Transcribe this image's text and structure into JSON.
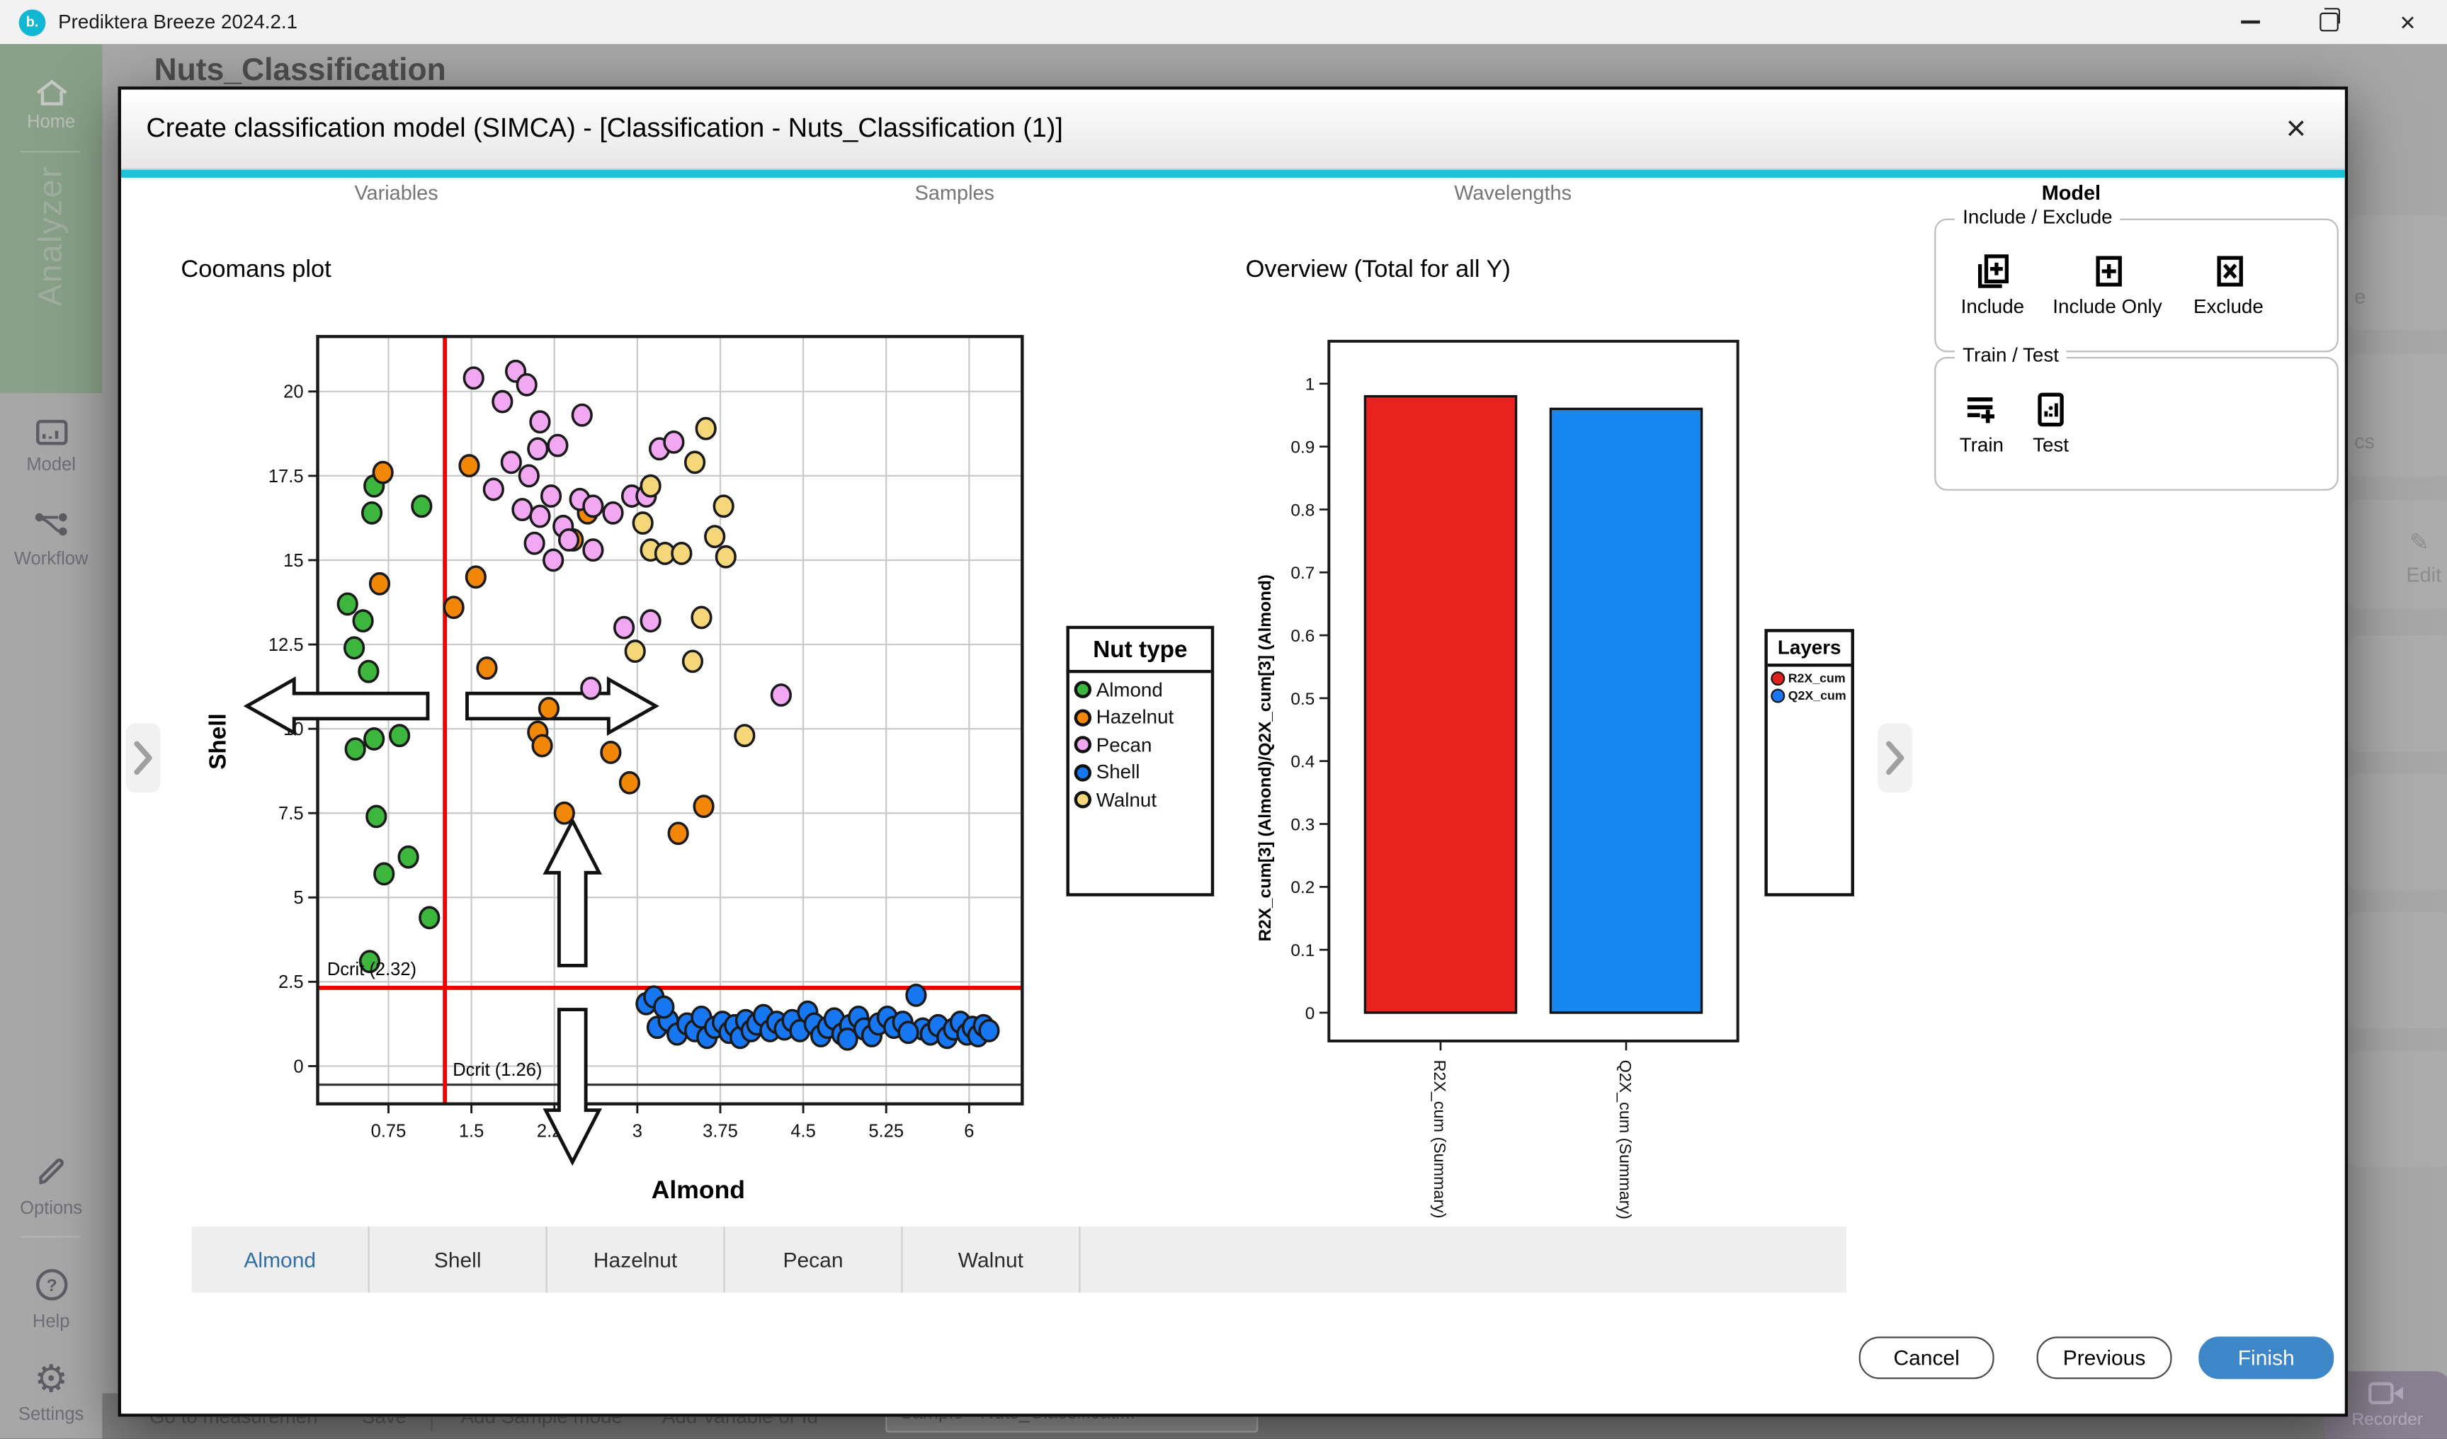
{
  "window": {
    "title": "Prediktera Breeze 2024.2.1",
    "logo_text": "b."
  },
  "sidebar": {
    "home": "Home",
    "analyzer": "Analyzer",
    "model": "Model",
    "workflow": "Workflow",
    "options": "Options",
    "help": "Help",
    "settings": "Settings"
  },
  "background": {
    "heading": "Nuts_Classification",
    "bottom_bar": {
      "go_to": "Go to measuremen",
      "save": "Save",
      "add_sample": "Add Sample mode",
      "add_variable": "Add Variable or Id",
      "dropdown": "Sample - Nuts_Classificati...",
      "caret": "▼"
    },
    "right_cards": {
      "card1": "e",
      "card2": "cs",
      "edit": "Edit"
    },
    "recorder": "Recorder"
  },
  "dialog": {
    "title": "Create classification model (SIMCA) - [Classification - Nuts_Classification (1)]",
    "close": "×",
    "steps": {
      "variables": "Variables",
      "samples": "Samples",
      "wavelengths": "Wavelengths",
      "model": "Model"
    },
    "panel": {
      "include_exclude": {
        "label": "Include / Exclude",
        "include": "Include",
        "include_only": "Include Only",
        "exclude": "Exclude"
      },
      "train_test": {
        "label": "Train / Test",
        "train": "Train",
        "test": "Test"
      }
    },
    "class_tabs": [
      "Almond",
      "Shell",
      "Hazelnut",
      "Pecan",
      "Walnut"
    ],
    "buttons": {
      "cancel": "Cancel",
      "previous": "Previous",
      "finish": "Finish"
    }
  },
  "colors": {
    "accent_teal": "#1ec2d6",
    "finish_blue": "#3d87c9",
    "dcrit_red": "#f20000"
  },
  "chart_data": [
    {
      "type": "scatter",
      "title": "Coomans plot",
      "xlabel": "Almond",
      "ylabel": "Shell",
      "xlim": [
        0.11,
        6.48
      ],
      "ylim": [
        -1.12,
        21.63
      ],
      "xticks": [
        0.75,
        1.5,
        2.25,
        3,
        3.75,
        4.5,
        5.25,
        6
      ],
      "yticks": [
        0,
        2.5,
        5,
        7.5,
        10,
        12.5,
        15,
        17.5,
        20
      ],
      "grid": true,
      "dcrit_x": {
        "value": 1.26,
        "label": "Dcrit (1.26)"
      },
      "dcrit_y": {
        "value": 2.32,
        "label": "Dcrit (2.32)"
      },
      "zero_line_y": -0.55,
      "legend": {
        "title": "Nut type",
        "position": "right"
      },
      "series": [
        {
          "name": "Almond",
          "color": "#3cb63c",
          "points": [
            [
              0.62,
              17.2
            ],
            [
              0.6,
              16.4
            ],
            [
              1.05,
              16.6
            ],
            [
              0.38,
              13.7
            ],
            [
              0.52,
              13.2
            ],
            [
              0.44,
              12.4
            ],
            [
              0.57,
              11.7
            ],
            [
              0.85,
              9.8
            ],
            [
              0.62,
              9.7
            ],
            [
              0.45,
              9.4
            ],
            [
              0.64,
              7.4
            ],
            [
              0.71,
              5.7
            ],
            [
              0.58,
              3.1
            ],
            [
              1.12,
              4.4
            ],
            [
              0.93,
              6.2
            ]
          ]
        },
        {
          "name": "Hazelnut",
          "color": "#f28705",
          "points": [
            [
              0.7,
              17.6
            ],
            [
              1.48,
              17.8
            ],
            [
              0.67,
              14.3
            ],
            [
              1.54,
              14.5
            ],
            [
              1.34,
              13.6
            ],
            [
              2.42,
              15.6
            ],
            [
              2.55,
              16.4
            ],
            [
              1.64,
              11.8
            ],
            [
              2.1,
              9.9
            ],
            [
              2.14,
              9.5
            ],
            [
              2.2,
              10.6
            ],
            [
              2.76,
              9.3
            ],
            [
              2.93,
              8.4
            ],
            [
              2.34,
              7.5
            ],
            [
              3.37,
              6.9
            ],
            [
              3.6,
              7.7
            ]
          ]
        },
        {
          "name": "Pecan",
          "color": "#f2a7f2",
          "points": [
            [
              1.52,
              20.4
            ],
            [
              1.9,
              20.6
            ],
            [
              2.0,
              20.2
            ],
            [
              1.78,
              19.7
            ],
            [
              2.12,
              19.1
            ],
            [
              2.5,
              19.3
            ],
            [
              2.1,
              18.3
            ],
            [
              2.28,
              18.4
            ],
            [
              1.86,
              17.9
            ],
            [
              2.02,
              17.5
            ],
            [
              1.7,
              17.1
            ],
            [
              2.22,
              16.9
            ],
            [
              2.48,
              16.8
            ],
            [
              1.96,
              16.5
            ],
            [
              2.12,
              16.3
            ],
            [
              2.33,
              16.0
            ],
            [
              2.6,
              16.6
            ],
            [
              2.78,
              16.4
            ],
            [
              2.95,
              16.9
            ],
            [
              3.08,
              16.9
            ],
            [
              2.07,
              15.5
            ],
            [
              2.38,
              15.6
            ],
            [
              2.6,
              15.3
            ],
            [
              2.24,
              15.0
            ],
            [
              3.2,
              18.3
            ],
            [
              3.33,
              18.5
            ],
            [
              2.88,
              13.0
            ],
            [
              3.12,
              13.2
            ],
            [
              2.58,
              11.2
            ],
            [
              4.3,
              11.0
            ]
          ]
        },
        {
          "name": "Shell",
          "color": "#1777f2",
          "points": [
            [
              3.08,
              1.85
            ],
            [
              3.18,
              1.15
            ],
            [
              3.15,
              2.05
            ],
            [
              3.28,
              1.35
            ],
            [
              3.36,
              0.95
            ],
            [
              3.45,
              1.25
            ],
            [
              3.52,
              1.05
            ],
            [
              3.58,
              1.45
            ],
            [
              3.63,
              0.85
            ],
            [
              3.7,
              1.15
            ],
            [
              3.77,
              1.3
            ],
            [
              3.83,
              1.0
            ],
            [
              3.88,
              1.2
            ],
            [
              3.93,
              0.85
            ],
            [
              3.98,
              1.35
            ],
            [
              4.03,
              1.05
            ],
            [
              4.08,
              1.25
            ],
            [
              4.14,
              1.5
            ],
            [
              4.2,
              1.05
            ],
            [
              4.26,
              1.3
            ],
            [
              4.33,
              1.1
            ],
            [
              4.4,
              1.35
            ],
            [
              4.47,
              1.05
            ],
            [
              4.54,
              1.6
            ],
            [
              4.6,
              1.25
            ],
            [
              4.66,
              0.9
            ],
            [
              4.72,
              1.15
            ],
            [
              4.78,
              1.4
            ],
            [
              4.85,
              0.95
            ],
            [
              4.92,
              1.2
            ],
            [
              5.0,
              1.45
            ],
            [
              5.05,
              1.1
            ],
            [
              5.12,
              0.9
            ],
            [
              5.18,
              1.25
            ],
            [
              5.26,
              1.45
            ],
            [
              5.32,
              1.15
            ],
            [
              5.4,
              1.3
            ],
            [
              5.52,
              2.1
            ],
            [
              5.58,
              1.1
            ],
            [
              5.65,
              0.95
            ],
            [
              5.72,
              1.2
            ],
            [
              5.8,
              0.85
            ],
            [
              5.86,
              1.1
            ],
            [
              5.92,
              1.3
            ],
            [
              5.98,
              0.95
            ],
            [
              6.03,
              1.15
            ],
            [
              6.08,
              0.9
            ],
            [
              6.13,
              1.2
            ],
            [
              6.18,
              1.05
            ],
            [
              3.24,
              1.75
            ],
            [
              4.9,
              0.8
            ],
            [
              5.45,
              1.0
            ]
          ]
        },
        {
          "name": "Walnut",
          "color": "#f5d77a",
          "points": [
            [
              3.62,
              18.9
            ],
            [
              3.52,
              17.9
            ],
            [
              3.78,
              16.6
            ],
            [
              3.7,
              15.7
            ],
            [
              3.8,
              15.1
            ],
            [
              3.05,
              16.1
            ],
            [
              3.12,
              15.3
            ],
            [
              3.25,
              15.2
            ],
            [
              3.4,
              15.2
            ],
            [
              3.58,
              13.3
            ],
            [
              2.98,
              12.3
            ],
            [
              3.5,
              12.0
            ],
            [
              3.97,
              9.8
            ],
            [
              3.12,
              17.2
            ]
          ]
        }
      ]
    },
    {
      "type": "bar",
      "title": "Overview (Total for all Y)",
      "ylabel": "R2X_cum[3] (Almond)/Q2X_cum[3] (Almond)",
      "ylim": [
        0,
        1.07
      ],
      "yticks": [
        0,
        0.1,
        0.2,
        0.3,
        0.4,
        0.5,
        0.6,
        0.7,
        0.8,
        0.9,
        1
      ],
      "categories": [
        "R2X_cum (Summary)",
        "Q2X_cum (Summary)"
      ],
      "values": [
        0.98,
        0.96
      ],
      "colors": [
        "#e8231f",
        "#1787f0"
      ],
      "legend": {
        "title": "Layers",
        "position": "right",
        "entries": [
          {
            "label": "R2X_cum",
            "color": "#e02020"
          },
          {
            "label": "Q2X_cum",
            "color": "#1777f2"
          }
        ]
      }
    }
  ]
}
